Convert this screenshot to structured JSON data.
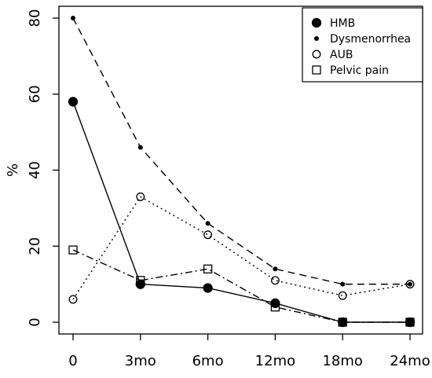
{
  "chart_data": {
    "type": "line",
    "title": "",
    "xlabel": "",
    "ylabel": "%",
    "categories": [
      "0",
      "3mo",
      "6mo",
      "12mo",
      "18mo",
      "24mo"
    ],
    "y_ticks": [
      0,
      20,
      40,
      60,
      80
    ],
    "ylim": [
      -3,
      83
    ],
    "grid": false,
    "legend_position": "top-right",
    "series": [
      {
        "name": "HMB",
        "marker": "filled-circle",
        "line": "solid",
        "values": [
          58,
          10,
          9,
          5,
          0,
          0
        ]
      },
      {
        "name": "Dysmenorrhea",
        "marker": "small-dot",
        "line": "dashed",
        "values": [
          80,
          46,
          26,
          14,
          10,
          10
        ]
      },
      {
        "name": "AUB",
        "marker": "open-circle",
        "line": "dotted",
        "values": [
          6,
          33,
          23,
          11,
          7,
          10
        ]
      },
      {
        "name": "Pelvic pain",
        "marker": "open-square",
        "line": "dashdot",
        "values": [
          19,
          11,
          14,
          4,
          0,
          0
        ]
      }
    ]
  }
}
